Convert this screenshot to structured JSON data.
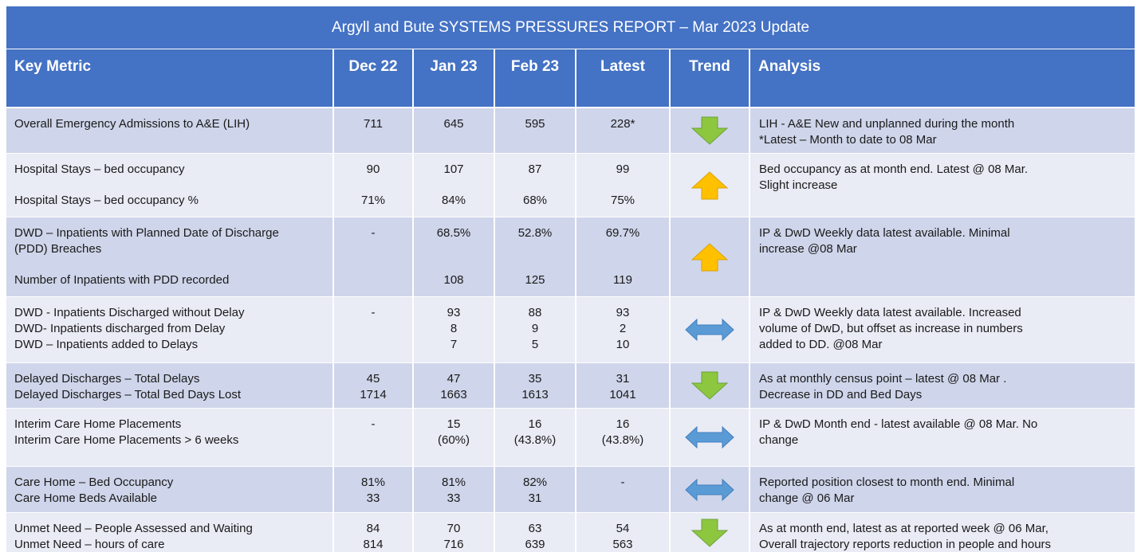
{
  "title": "Argyll and Bute SYSTEMS PRESSURES REPORT – Mar 2023 Update",
  "header": [
    "Key Metric",
    "Dec 22",
    "Jan 23",
    "Feb 23",
    "Latest",
    "Trend",
    "Analysis"
  ],
  "rows": [
    {
      "lines": [
        {
          "metric": "Overall Emergency Admissions to A&E (LIH)",
          "dec": 711,
          "jan": 645,
          "feb": 595,
          "latest": "228*"
        }
      ],
      "analysis": [
        "LIH - A&E New and unplanned during the month",
        "*Latest – Month to date to 08 Mar"
      ]
    },
    {
      "lines": [
        {
          "metric": "Hospital Stays – bed occupancy",
          "dec": 90,
          "jan": 107,
          "feb": 87,
          "latest": 99
        },
        {
          "metric": "Hospital Stays – bed occupancy %",
          "dec": "71%",
          "jan": "84%",
          "feb": "68%",
          "latest": "75%"
        }
      ],
      "analysis": [
        "Bed occupancy as at month end. Latest @  08 Mar.",
        "Slight increase"
      ]
    },
    {
      "lines": [
        {
          "metric": "DWD – Inpatients with Planned Date of Discharge (PDD) Breaches",
          "dec": "-",
          "jan": "68.5%",
          "feb": "52.8%",
          "latest": "69.7%"
        },
        {
          "metric": "Number of Inpatients with PDD recorded",
          "jan": 108,
          "feb": 125,
          "latest": 119
        }
      ],
      "analysis": [
        "IP & DwD Weekly data latest available. Minimal",
        "increase @08 Mar"
      ]
    },
    {
      "lines": [
        {
          "metric": "DWD - Inpatients Discharged without Delay",
          "dec": "-",
          "jan": 93,
          "feb": 88,
          "latest": 93
        },
        {
          "metric": "DWD- Inpatients discharged from Delay",
          "jan": 8,
          "feb": 9,
          "latest": 2
        },
        {
          "metric": "DWD – Inpatients added to Delays",
          "jan": 7,
          "feb": 5,
          "latest": 10
        }
      ],
      "analysis": [
        "IP & DwD Weekly data latest available. Increased",
        "volume of DwD, but offset as increase in numbers",
        "added to DD. @08 Mar"
      ]
    },
    {
      "lines": [
        {
          "metric": "Delayed Discharges – Total Delays",
          "dec": 45,
          "jan": 47,
          "feb": 35,
          "latest": 31
        },
        {
          "metric": "Delayed Discharges – Total Bed Days Lost",
          "dec": 1714,
          "jan": 1663,
          "feb": 1613,
          "latest": 1041
        }
      ],
      "analysis": [
        "As at monthly census point – latest @ 08  Mar .",
        "Decrease in DD and Bed Days"
      ]
    },
    {
      "lines": [
        {
          "metric": "Interim Care Home Placements",
          "dec": "-",
          "jan": 15,
          "feb": 16,
          "latest": 16
        },
        {
          "metric": "Interim Care Home Placements > 6 weeks",
          "jan": "(60%)",
          "feb": "(43.8%)",
          "latest": "(43.8%)"
        }
      ],
      "analysis": [
        "IP & DwD Month end - latest available @ 08 Mar. No",
        "change"
      ]
    },
    {
      "lines": [
        {
          "metric": "Care Home – Bed Occupancy",
          "dec": "81%",
          "jan": "81%",
          "feb": "82%",
          "latest": "-"
        },
        {
          "metric": "Care Home Beds Available",
          "dec": 33,
          "jan": 33,
          "feb": 31
        }
      ],
      "analysis": [
        "Reported position closest to month end.  Minimal",
        "change @ 06 Mar"
      ]
    },
    {
      "lines": [
        {
          "metric": "Unmet Need – People Assessed and Waiting",
          "dec": 84,
          "jan": 70,
          "feb": 63,
          "latest": 54
        },
        {
          "metric": "Unmet Need – hours of care",
          "dec": 814,
          "jan": 716,
          "feb": 639,
          "latest": 563
        }
      ],
      "analysis": [
        "As at month end, latest as at reported week @ 06 Mar,",
        "Overall trajectory reports reduction in people and hours"
      ]
    }
  ]
}
